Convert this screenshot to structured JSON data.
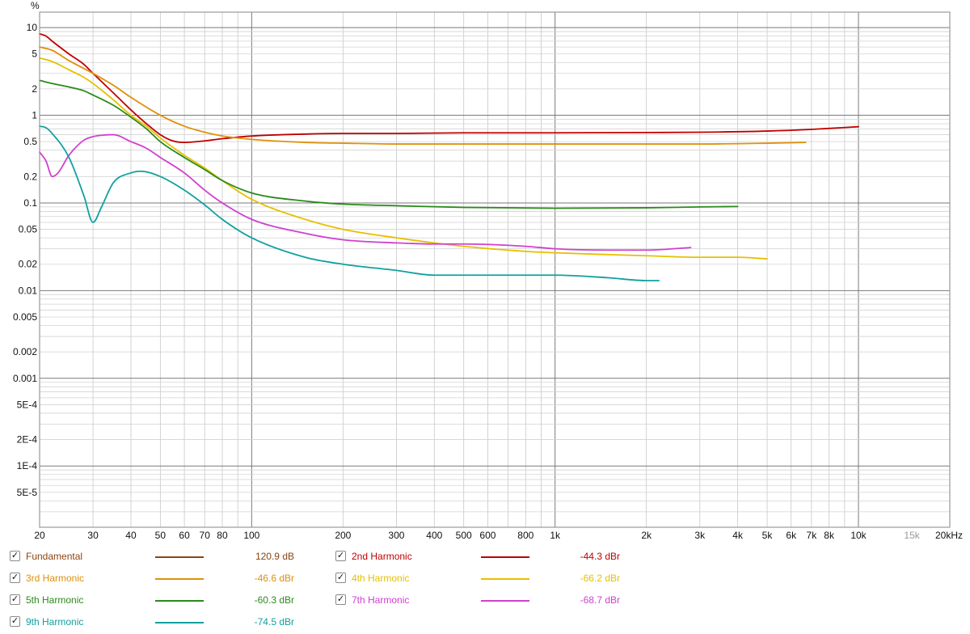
{
  "chart_data": {
    "type": "line",
    "title": "",
    "xlabel": "",
    "ylabel": "%",
    "x_scale": "log",
    "y_scale": "log",
    "xlim": [
      20,
      20000
    ],
    "ylim": [
      2e-05,
      15
    ],
    "grid": true,
    "y_tick_labels": [
      {
        "v": 10,
        "t": "10"
      },
      {
        "v": 5,
        "t": "5"
      },
      {
        "v": 2,
        "t": "2"
      },
      {
        "v": 1,
        "t": "1"
      },
      {
        "v": 0.5,
        "t": "0.5"
      },
      {
        "v": 0.2,
        "t": "0.2"
      },
      {
        "v": 0.1,
        "t": "0.1"
      },
      {
        "v": 0.05,
        "t": "0.05"
      },
      {
        "v": 0.02,
        "t": "0.02"
      },
      {
        "v": 0.01,
        "t": "0.01"
      },
      {
        "v": 0.005,
        "t": "0.005"
      },
      {
        "v": 0.002,
        "t": "0.002"
      },
      {
        "v": 0.001,
        "t": "0.001"
      },
      {
        "v": 0.0005,
        "t": "5E-4"
      },
      {
        "v": 0.0002,
        "t": "2E-4"
      },
      {
        "v": 0.0001,
        "t": "1E-4"
      },
      {
        "v": 5e-05,
        "t": "5E-5"
      }
    ],
    "x_tick_labels": [
      {
        "v": 20,
        "t": "20"
      },
      {
        "v": 30,
        "t": "30"
      },
      {
        "v": 40,
        "t": "40"
      },
      {
        "v": 50,
        "t": "50"
      },
      {
        "v": 60,
        "t": "60"
      },
      {
        "v": 70,
        "t": "70"
      },
      {
        "v": 80,
        "t": "80"
      },
      {
        "v": 100,
        "t": "100"
      },
      {
        "v": 200,
        "t": "200"
      },
      {
        "v": 300,
        "t": "300"
      },
      {
        "v": 400,
        "t": "400"
      },
      {
        "v": 500,
        "t": "500"
      },
      {
        "v": 600,
        "t": "600"
      },
      {
        "v": 800,
        "t": "800"
      },
      {
        "v": 1000,
        "t": "1k"
      },
      {
        "v": 2000,
        "t": "2k"
      },
      {
        "v": 3000,
        "t": "3k"
      },
      {
        "v": 4000,
        "t": "4k"
      },
      {
        "v": 5000,
        "t": "5k"
      },
      {
        "v": 6000,
        "t": "6k"
      },
      {
        "v": 7000,
        "t": "7k"
      },
      {
        "v": 8000,
        "t": "8k"
      },
      {
        "v": 10000,
        "t": "10k"
      },
      {
        "v": 15000,
        "t": "15k",
        "faint": true
      },
      {
        "v": 20000,
        "t": "20kHz"
      }
    ],
    "series": [
      {
        "name": "2nd Harmonic",
        "color": "#c00000",
        "points": [
          [
            20,
            8.5
          ],
          [
            21,
            8
          ],
          [
            22,
            7
          ],
          [
            25,
            5
          ],
          [
            28,
            3.8
          ],
          [
            30,
            3
          ],
          [
            35,
            1.8
          ],
          [
            40,
            1.15
          ],
          [
            45,
            0.8
          ],
          [
            50,
            0.6
          ],
          [
            55,
            0.51
          ],
          [
            60,
            0.49
          ],
          [
            70,
            0.51
          ],
          [
            80,
            0.54
          ],
          [
            100,
            0.58
          ],
          [
            150,
            0.61
          ],
          [
            200,
            0.62
          ],
          [
            300,
            0.62
          ],
          [
            500,
            0.63
          ],
          [
            1000,
            0.63
          ],
          [
            2000,
            0.635
          ],
          [
            3000,
            0.64
          ],
          [
            5000,
            0.66
          ],
          [
            7000,
            0.69
          ],
          [
            10000,
            0.74
          ]
        ]
      },
      {
        "name": "3rd Harmonic",
        "color": "#e0900a",
        "points": [
          [
            20,
            6
          ],
          [
            22,
            5.5
          ],
          [
            25,
            4.2
          ],
          [
            30,
            3
          ],
          [
            35,
            2.2
          ],
          [
            40,
            1.6
          ],
          [
            50,
            1.0
          ],
          [
            60,
            0.75
          ],
          [
            70,
            0.64
          ],
          [
            80,
            0.58
          ],
          [
            100,
            0.53
          ],
          [
            150,
            0.49
          ],
          [
            200,
            0.48
          ],
          [
            300,
            0.47
          ],
          [
            500,
            0.47
          ],
          [
            1000,
            0.47
          ],
          [
            2000,
            0.47
          ],
          [
            3000,
            0.47
          ],
          [
            5000,
            0.48
          ],
          [
            6700,
            0.49
          ]
        ]
      },
      {
        "name": "4th Harmonic",
        "color": "#e6c000",
        "points": [
          [
            20,
            4.5
          ],
          [
            22,
            4.1
          ],
          [
            25,
            3.3
          ],
          [
            28,
            2.7
          ],
          [
            30,
            2.3
          ],
          [
            35,
            1.5
          ],
          [
            40,
            1.0
          ],
          [
            45,
            0.75
          ],
          [
            50,
            0.55
          ],
          [
            60,
            0.35
          ],
          [
            70,
            0.25
          ],
          [
            80,
            0.18
          ],
          [
            100,
            0.11
          ],
          [
            150,
            0.065
          ],
          [
            200,
            0.05
          ],
          [
            300,
            0.04
          ],
          [
            400,
            0.035
          ],
          [
            500,
            0.032
          ],
          [
            800,
            0.028
          ],
          [
            1000,
            0.027
          ],
          [
            2000,
            0.025
          ],
          [
            3000,
            0.024
          ],
          [
            4000,
            0.024
          ],
          [
            5000,
            0.023
          ]
        ]
      },
      {
        "name": "5th Harmonic",
        "color": "#2a8a1a",
        "points": [
          [
            20,
            2.5
          ],
          [
            22,
            2.3
          ],
          [
            25,
            2.1
          ],
          [
            28,
            1.9
          ],
          [
            30,
            1.7
          ],
          [
            35,
            1.3
          ],
          [
            40,
            0.95
          ],
          [
            45,
            0.7
          ],
          [
            50,
            0.5
          ],
          [
            60,
            0.33
          ],
          [
            70,
            0.24
          ],
          [
            80,
            0.18
          ],
          [
            100,
            0.13
          ],
          [
            150,
            0.105
          ],
          [
            200,
            0.097
          ],
          [
            300,
            0.093
          ],
          [
            500,
            0.089
          ],
          [
            1000,
            0.087
          ],
          [
            2000,
            0.088
          ],
          [
            3000,
            0.09
          ],
          [
            4000,
            0.091
          ]
        ]
      },
      {
        "name": "7th Harmonic",
        "color": "#d040d0",
        "points": [
          [
            20,
            0.38
          ],
          [
            21,
            0.3
          ],
          [
            22,
            0.2
          ],
          [
            23,
            0.22
          ],
          [
            25,
            0.35
          ],
          [
            28,
            0.52
          ],
          [
            30,
            0.57
          ],
          [
            35,
            0.6
          ],
          [
            40,
            0.5
          ],
          [
            45,
            0.42
          ],
          [
            50,
            0.33
          ],
          [
            60,
            0.22
          ],
          [
            70,
            0.14
          ],
          [
            80,
            0.1
          ],
          [
            100,
            0.065
          ],
          [
            150,
            0.045
          ],
          [
            200,
            0.038
          ],
          [
            300,
            0.035
          ],
          [
            400,
            0.034
          ],
          [
            500,
            0.034
          ],
          [
            800,
            0.032
          ],
          [
            1000,
            0.03
          ],
          [
            1500,
            0.029
          ],
          [
            2000,
            0.029
          ],
          [
            2800,
            0.031
          ]
        ]
      },
      {
        "name": "9th Harmonic",
        "color": "#10a0a0",
        "points": [
          [
            20,
            0.75
          ],
          [
            21,
            0.72
          ],
          [
            22,
            0.62
          ],
          [
            25,
            0.33
          ],
          [
            28,
            0.12
          ],
          [
            30,
            0.06
          ],
          [
            32,
            0.09
          ],
          [
            35,
            0.17
          ],
          [
            40,
            0.22
          ],
          [
            43,
            0.23
          ],
          [
            50,
            0.2
          ],
          [
            60,
            0.14
          ],
          [
            70,
            0.095
          ],
          [
            80,
            0.065
          ],
          [
            100,
            0.04
          ],
          [
            150,
            0.024
          ],
          [
            200,
            0.02
          ],
          [
            300,
            0.017
          ],
          [
            400,
            0.015
          ],
          [
            500,
            0.015
          ],
          [
            700,
            0.015
          ],
          [
            1000,
            0.015
          ],
          [
            1500,
            0.014
          ],
          [
            2000,
            0.013
          ],
          [
            2200,
            0.013
          ]
        ]
      }
    ]
  },
  "legend": {
    "items": [
      {
        "label": "Fundamental",
        "value": "120.9 dB",
        "color": "#8b4513",
        "checked": true
      },
      {
        "label": "2nd Harmonic",
        "value": "-44.3 dBr",
        "color": "#c00000",
        "checked": true
      },
      {
        "label": "3rd Harmonic",
        "value": "-46.6 dBr",
        "color": "#e0900a",
        "checked": true
      },
      {
        "label": "4th Harmonic",
        "value": "-66.2 dBr",
        "color": "#e6c000",
        "checked": true
      },
      {
        "label": "5th Harmonic",
        "value": "-60.3 dBr",
        "color": "#2a8a1a",
        "checked": true
      },
      {
        "label": "7th Harmonic",
        "value": "-68.7 dBr",
        "color": "#d040d0",
        "checked": true
      },
      {
        "label": "9th Harmonic",
        "value": "-74.5 dBr",
        "color": "#10a0a0",
        "checked": true
      }
    ],
    "check_glyph": "✓"
  }
}
